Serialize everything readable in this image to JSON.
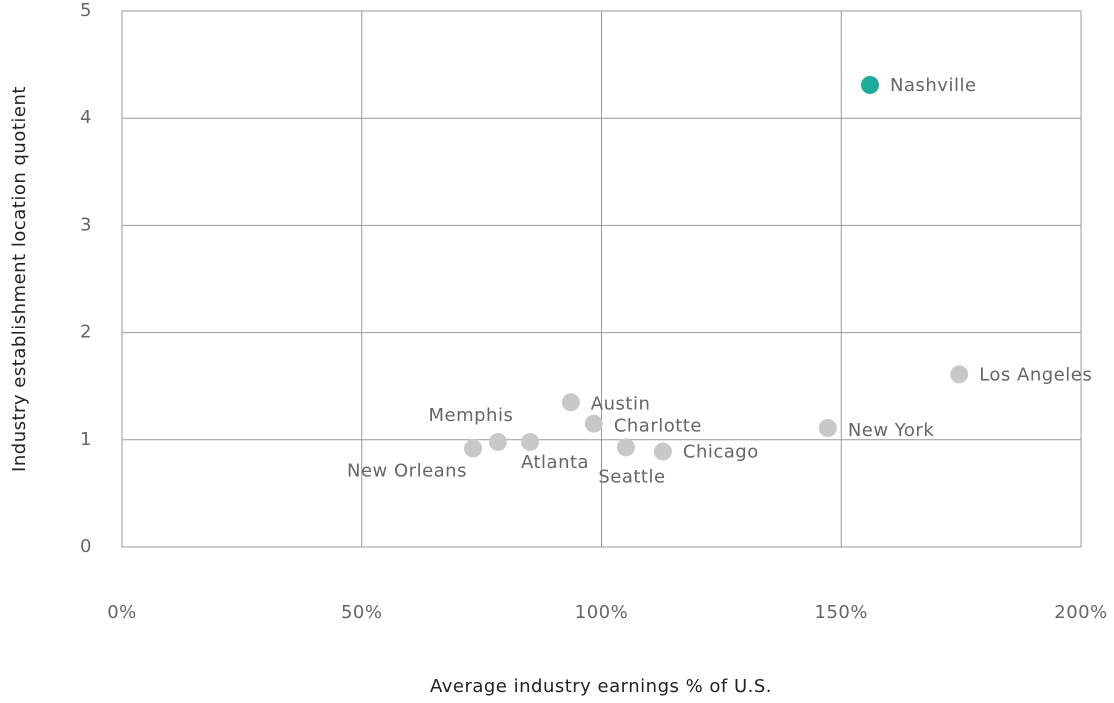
{
  "chart_data": {
    "type": "scatter",
    "x_label": "Average industry earnings % of U.S.",
    "y_label": "Industry establishment location quotient",
    "labels": [
      "Nashville",
      "Los Angeles",
      "New York",
      "Chicago",
      "Seattle",
      "Charlotte",
      "Austin",
      "Atlanta",
      "Memphis",
      "New Orleans"
    ],
    "x": [
      156,
      174.6,
      147.2,
      112.8,
      105.1,
      98.4,
      93.6,
      85.1,
      78.4,
      73.2
    ],
    "y": [
      4.31,
      1.61,
      1.11,
      0.89,
      0.93,
      1.15,
      1.35,
      0.98,
      0.98,
      0.92
    ],
    "colors": [
      "#1aab9b",
      "#c8c8c8",
      "#c8c8c8",
      "#c8c8c8",
      "#c8c8c8",
      "#c8c8c8",
      "#c8c8c8",
      "#c8c8c8",
      "#c8c8c8",
      "#c8c8c8"
    ],
    "xlim": [
      0,
      200
    ],
    "xticks": [
      {
        "value": 0,
        "label": "0%"
      },
      {
        "value": 50,
        "label": "50%"
      },
      {
        "value": 100,
        "label": "100%"
      },
      {
        "value": 150,
        "label": "150%"
      },
      {
        "value": 200,
        "label": "200%"
      }
    ],
    "ylim": [
      0,
      5
    ],
    "yticks": [
      0,
      1,
      2,
      3,
      4,
      5
    ],
    "grid": true
  }
}
